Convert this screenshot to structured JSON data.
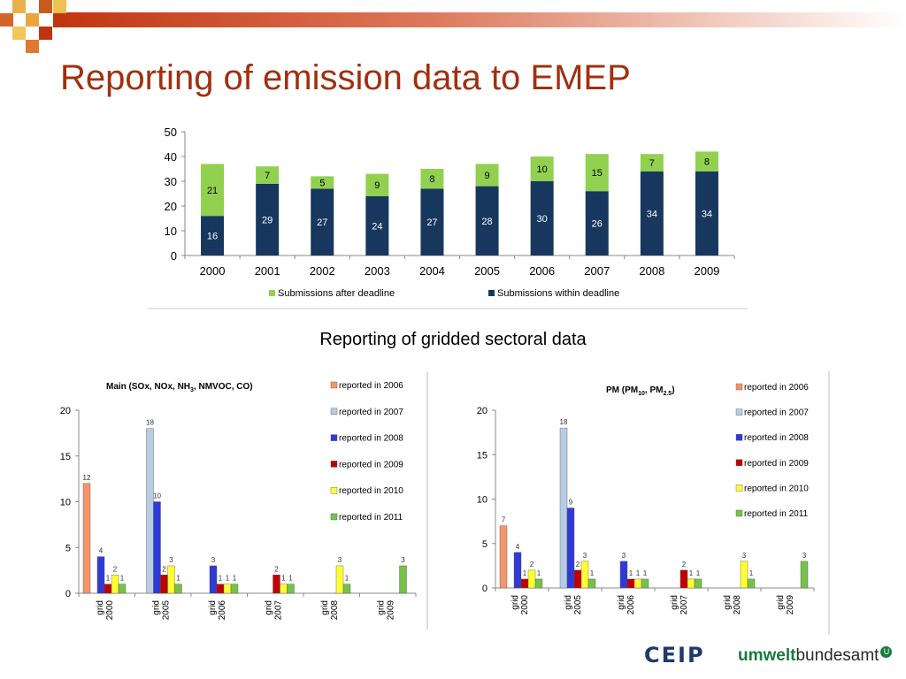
{
  "slide": {
    "title": "Reporting of emission data to EMEP",
    "subtitle": "Reporting of gridded sectoral data"
  },
  "colors": {
    "title": "#a0300f",
    "after_deadline": "#92d050",
    "within_deadline": "#17375e",
    "r2006": "#f4956b",
    "r2007": "#b8cce4",
    "r2008": "#2e3ad8",
    "r2009": "#c00000",
    "r2010": "#ffff33",
    "r2011": "#77c14a"
  },
  "logos": {
    "ceip": "CEIP",
    "uba_part1": "umwelt",
    "uba_part2": "bundesamt",
    "uba_mark": "U"
  },
  "chart_data": [
    {
      "type": "bar",
      "stacked": true,
      "categories": [
        "2000",
        "2001",
        "2002",
        "2003",
        "2004",
        "2005",
        "2006",
        "2007",
        "2008",
        "2009"
      ],
      "series": [
        {
          "name": "Submissions within deadline",
          "values": [
            16,
            29,
            27,
            24,
            27,
            28,
            30,
            26,
            34,
            34
          ]
        },
        {
          "name": "Submissions after deadline",
          "values": [
            21,
            7,
            5,
            9,
            8,
            9,
            10,
            15,
            7,
            8
          ]
        }
      ],
      "yticks": [
        0,
        10,
        20,
        30,
        40,
        50
      ],
      "ylim": [
        0,
        50
      ],
      "grid": false,
      "legend": "bottom"
    },
    {
      "type": "bar",
      "title_parts": [
        "Main  (SOx,  NOx,  NH",
        "3",
        ",  NMVOC,  CO)"
      ],
      "categories": [
        [
          "grid",
          "2000"
        ],
        [
          "grid",
          "2005"
        ],
        [
          "grid",
          "2006"
        ],
        [
          "grid",
          "2007"
        ],
        [
          "grid",
          "2008"
        ],
        [
          "grid",
          "2009"
        ]
      ],
      "series": [
        {
          "name": "reported in 2006",
          "values": [
            12,
            null,
            null,
            null,
            null,
            null
          ]
        },
        {
          "name": "reported in 2007",
          "values": [
            null,
            18,
            null,
            null,
            null,
            null
          ]
        },
        {
          "name": "reported in 2008",
          "values": [
            4,
            10,
            3,
            null,
            null,
            null
          ]
        },
        {
          "name": "reported in 2009",
          "values": [
            1,
            2,
            1,
            2,
            null,
            null
          ]
        },
        {
          "name": "reported in 2010",
          "values": [
            2,
            3,
            1,
            1,
            3,
            null
          ]
        },
        {
          "name": "reported in 2011",
          "values": [
            1,
            1,
            1,
            1,
            1,
            3
          ]
        }
      ],
      "yticks": [
        0,
        5,
        10,
        15,
        20
      ],
      "ylim": [
        0,
        20
      ],
      "legend": "right"
    },
    {
      "type": "bar",
      "title_parts": [
        "PM (PM",
        "10",
        ", PM",
        "2.5",
        ")"
      ],
      "categories": [
        [
          "grid",
          "2000"
        ],
        [
          "grid",
          "2005"
        ],
        [
          "grid",
          "2006"
        ],
        [
          "grid",
          "2007"
        ],
        [
          "grid",
          "2008"
        ],
        [
          "grid",
          "2009"
        ]
      ],
      "series": [
        {
          "name": "reported in 2006",
          "values": [
            7,
            null,
            null,
            null,
            null,
            null
          ]
        },
        {
          "name": "reported in 2007",
          "values": [
            null,
            18,
            null,
            null,
            null,
            null
          ]
        },
        {
          "name": "reported in 2008",
          "values": [
            4,
            9,
            3,
            null,
            null,
            null
          ]
        },
        {
          "name": "reported in 2009",
          "values": [
            1,
            2,
            1,
            2,
            null,
            null
          ]
        },
        {
          "name": "reported in 2010",
          "values": [
            2,
            3,
            1,
            1,
            3,
            null
          ]
        },
        {
          "name": "reported in 2011",
          "values": [
            1,
            1,
            1,
            1,
            1,
            3
          ]
        }
      ],
      "yticks": [
        0,
        5,
        10,
        15,
        20
      ],
      "ylim": [
        0,
        20
      ],
      "legend": "right"
    }
  ]
}
